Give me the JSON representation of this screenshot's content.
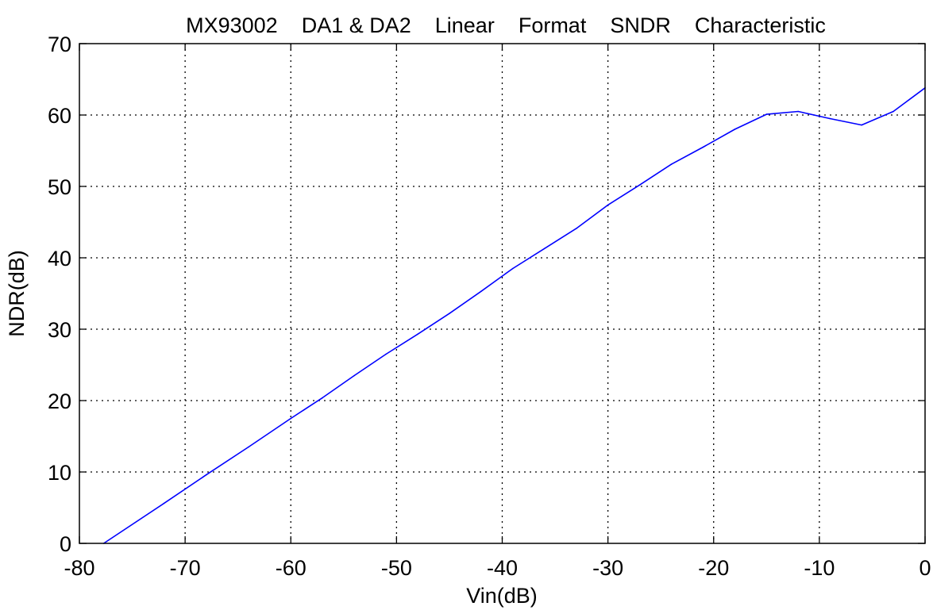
{
  "chart_data": {
    "type": "line",
    "title": "MX93002    DA1 & DA2    Linear    Format    SNDR    Characteristic",
    "xlabel": "Vin(dB)",
    "ylabel": "NDR(dB)",
    "xlim": [
      -80,
      0
    ],
    "ylim": [
      0,
      70
    ],
    "x_ticks": [
      -80,
      -70,
      -60,
      -50,
      -40,
      -30,
      -20,
      -10,
      0
    ],
    "y_ticks": [
      0,
      10,
      20,
      30,
      40,
      50,
      60,
      70
    ],
    "x_tick_labels": [
      "-80",
      "-70",
      "-60",
      "-50",
      "-40",
      "-30",
      "-20",
      "-10",
      "0"
    ],
    "y_tick_labels": [
      "0",
      "10",
      "20",
      "30",
      "40",
      "50",
      "60",
      "70"
    ],
    "grid": true,
    "grid_style": "dotted",
    "series": [
      {
        "color": "#0000ff",
        "x": [
          -77.7,
          -72,
          -68,
          -64,
          -60,
          -57,
          -54,
          -51,
          -48,
          -45,
          -42,
          -39,
          -36,
          -33,
          -30,
          -27,
          -24,
          -21,
          -18,
          -15,
          -12,
          -9,
          -6,
          -3,
          0
        ],
        "y": [
          0,
          5.6,
          9.6,
          13.5,
          17.5,
          20.4,
          23.5,
          26.5,
          29.3,
          32.2,
          35.3,
          38.5,
          41.3,
          44.1,
          47.4,
          50.2,
          53.1,
          55.5,
          58.0,
          60.1,
          60.5,
          59.5,
          58.6,
          60.5,
          63.8
        ]
      }
    ]
  }
}
